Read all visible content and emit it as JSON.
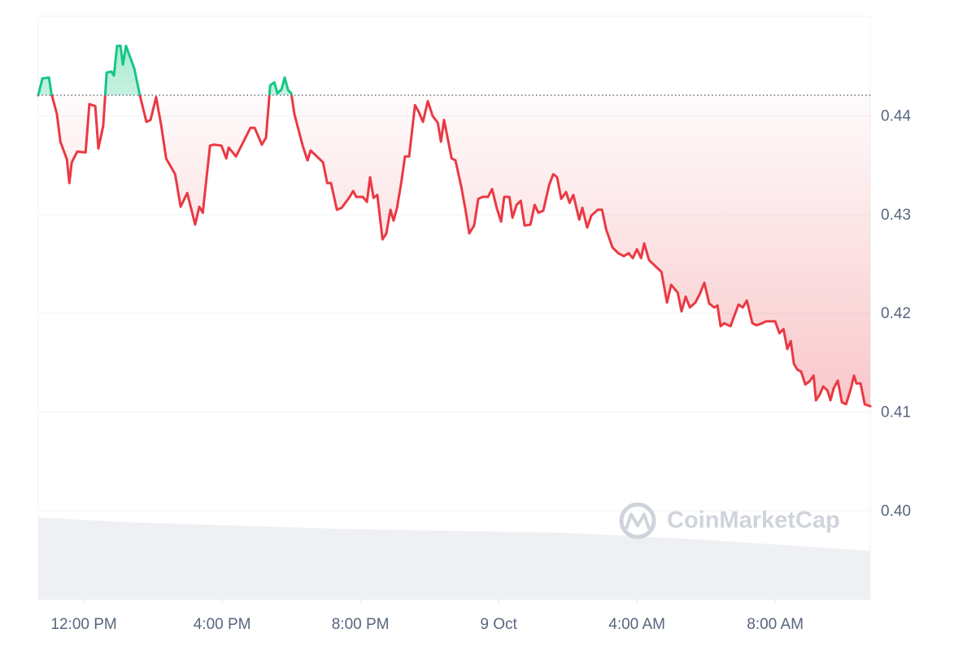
{
  "chart_data": {
    "type": "line",
    "watermark": "CoinMarketCap",
    "up_color": "#16c784",
    "down_color": "#ea3943",
    "reference": 0.4421,
    "grid": true,
    "xlim": [
      -1.32,
      22.75
    ],
    "ylim": [
      0.391,
      0.4501
    ],
    "xticks": [
      {
        "value": 0,
        "label": "12:00 PM"
      },
      {
        "value": 4,
        "label": "4:00 PM"
      },
      {
        "value": 8,
        "label": "8:00 PM"
      },
      {
        "value": 12,
        "label": "9 Oct"
      },
      {
        "value": 16,
        "label": "4:00 AM"
      },
      {
        "value": 20,
        "label": "8:00 AM"
      }
    ],
    "yticks": [
      {
        "value": 0.4,
        "label": "0.40"
      },
      0.41,
      0.42,
      0.43,
      0.44
    ],
    "x": [
      -1.32,
      -1.2,
      -1.01,
      -0.94,
      -0.78,
      -0.68,
      -0.49,
      -0.42,
      -0.35,
      -0.19,
      0.05,
      0.16,
      0.33,
      0.42,
      0.56,
      0.66,
      0.8,
      0.87,
      0.96,
      1.06,
      1.13,
      1.22,
      1.46,
      1.62,
      1.81,
      1.93,
      2.09,
      2.24,
      2.38,
      2.64,
      2.8,
      2.99,
      3.22,
      3.34,
      3.44,
      3.65,
      3.76,
      3.98,
      4.12,
      4.19,
      4.4,
      4.82,
      4.94,
      5.15,
      5.27,
      5.39,
      5.51,
      5.6,
      5.72,
      5.81,
      5.91,
      6.0,
      6.09,
      6.33,
      6.47,
      6.56,
      6.92,
      7.04,
      7.15,
      7.32,
      7.46,
      7.69,
      7.79,
      7.88,
      8.07,
      8.19,
      8.28,
      8.38,
      8.49,
      8.64,
      8.75,
      8.87,
      8.96,
      9.06,
      9.18,
      9.29,
      9.41,
      9.58,
      9.69,
      9.81,
      9.95,
      10.09,
      10.24,
      10.33,
      10.42,
      10.64,
      10.75,
      10.92,
      11.04,
      11.15,
      11.29,
      11.41,
      11.53,
      11.69,
      11.81,
      11.95,
      12.07,
      12.16,
      12.31,
      12.4,
      12.52,
      12.64,
      12.75,
      12.92,
      13.04,
      13.15,
      13.29,
      13.46,
      13.58,
      13.69,
      13.81,
      13.95,
      14.05,
      14.16,
      14.33,
      14.42,
      14.56,
      14.68,
      14.87,
      14.99,
      15.11,
      15.29,
      15.46,
      15.62,
      15.76,
      15.88,
      16.0,
      16.12,
      16.21,
      16.35,
      16.59,
      16.71,
      16.87,
      16.99,
      17.18,
      17.29,
      17.41,
      17.53,
      17.69,
      17.81,
      17.95,
      18.09,
      18.24,
      18.33,
      18.42,
      18.52,
      18.71,
      18.8,
      18.94,
      19.06,
      19.18,
      19.34,
      19.46,
      19.62,
      19.74,
      20.0,
      20.12,
      20.24,
      20.35,
      20.45,
      20.54,
      20.64,
      20.75,
      20.87,
      20.99,
      21.11,
      21.18,
      21.29,
      21.39,
      21.51,
      21.6,
      21.69,
      21.81,
      21.93,
      22.05,
      22.19,
      22.28,
      22.35,
      22.47,
      22.59,
      22.75
    ],
    "values": [
      0.4421,
      0.4438,
      0.4439,
      0.4423,
      0.4402,
      0.4374,
      0.4356,
      0.4332,
      0.4353,
      0.4364,
      0.4363,
      0.4412,
      0.441,
      0.4367,
      0.439,
      0.4444,
      0.4445,
      0.4441,
      0.4471,
      0.4471,
      0.4452,
      0.4471,
      0.4448,
      0.4421,
      0.4394,
      0.4396,
      0.4419,
      0.439,
      0.4357,
      0.4341,
      0.4308,
      0.4322,
      0.429,
      0.4308,
      0.4302,
      0.437,
      0.4371,
      0.437,
      0.4357,
      0.4368,
      0.4359,
      0.4388,
      0.4388,
      0.4371,
      0.4378,
      0.4431,
      0.4434,
      0.4423,
      0.4427,
      0.4439,
      0.4426,
      0.4423,
      0.4402,
      0.437,
      0.4355,
      0.4365,
      0.4353,
      0.4332,
      0.4332,
      0.4305,
      0.4307,
      0.4318,
      0.4324,
      0.4318,
      0.4318,
      0.4313,
      0.4338,
      0.4317,
      0.432,
      0.4275,
      0.4281,
      0.4305,
      0.4294,
      0.4307,
      0.4332,
      0.4359,
      0.4359,
      0.4411,
      0.4404,
      0.4394,
      0.4415,
      0.44,
      0.4393,
      0.4374,
      0.4396,
      0.4357,
      0.4355,
      0.4328,
      0.4305,
      0.4281,
      0.4289,
      0.4316,
      0.4318,
      0.4318,
      0.4326,
      0.4306,
      0.4293,
      0.4318,
      0.4318,
      0.4297,
      0.431,
      0.4314,
      0.4289,
      0.429,
      0.431,
      0.4302,
      0.4304,
      0.433,
      0.4341,
      0.4338,
      0.4316,
      0.4323,
      0.4312,
      0.432,
      0.4295,
      0.4307,
      0.4287,
      0.4299,
      0.4305,
      0.4305,
      0.4285,
      0.4267,
      0.4261,
      0.4258,
      0.4261,
      0.4256,
      0.4265,
      0.4256,
      0.4271,
      0.4254,
      0.4246,
      0.4242,
      0.4211,
      0.4229,
      0.4221,
      0.4202,
      0.4217,
      0.4206,
      0.4211,
      0.4219,
      0.4231,
      0.421,
      0.4206,
      0.4208,
      0.4187,
      0.419,
      0.4187,
      0.4196,
      0.4209,
      0.4206,
      0.4213,
      0.419,
      0.4188,
      0.419,
      0.4192,
      0.4192,
      0.418,
      0.4184,
      0.4164,
      0.4172,
      0.4149,
      0.4143,
      0.4141,
      0.4128,
      0.4131,
      0.4137,
      0.4112,
      0.4118,
      0.4126,
      0.4122,
      0.4112,
      0.4124,
      0.4132,
      0.411,
      0.4108,
      0.4124,
      0.4137,
      0.4129,
      0.4129,
      0.4108,
      0.4106
    ]
  }
}
